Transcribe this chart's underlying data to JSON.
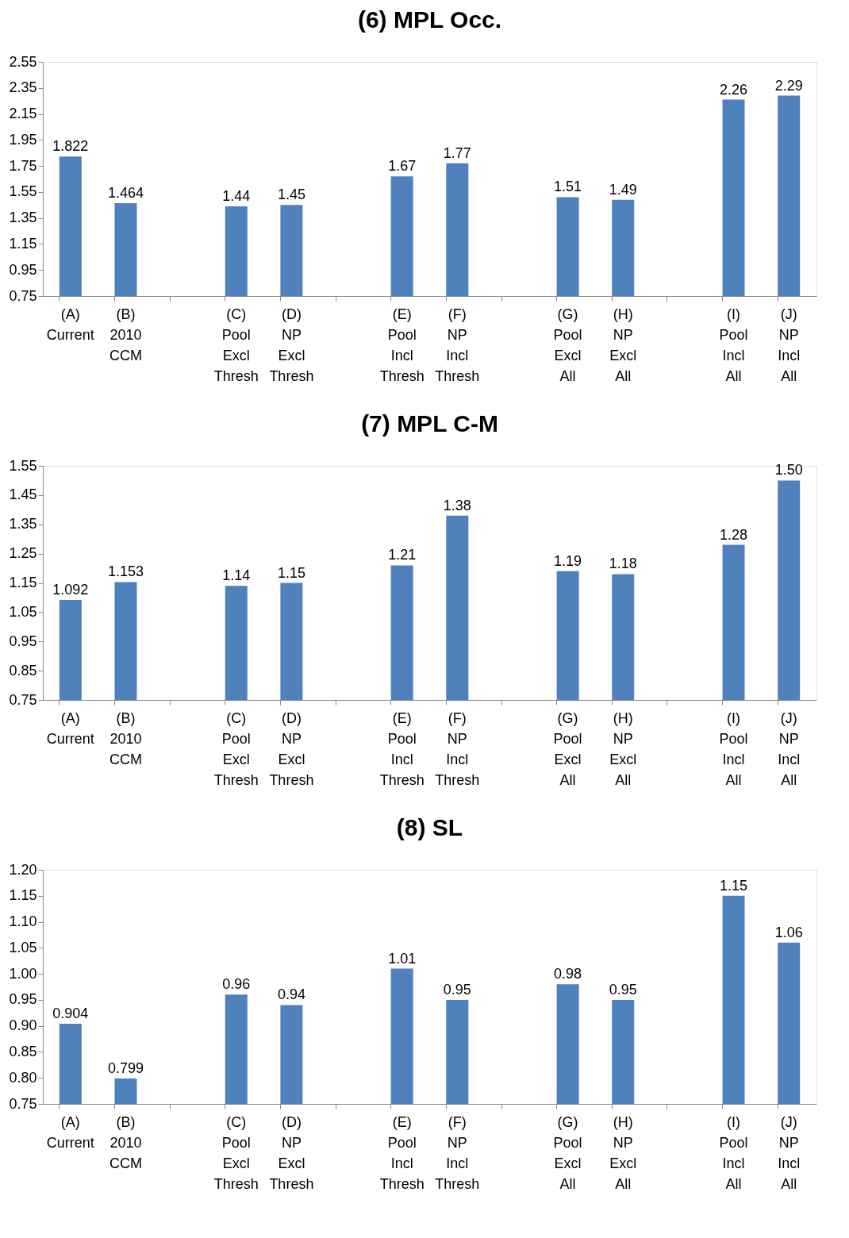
{
  "chart_data": [
    {
      "type": "bar",
      "title": "(6) MPL Occ.",
      "categories": [
        "(A) Current",
        "(B) 2010 CCM",
        null,
        "(C) Pool Excl Thresh",
        "(D) NP Excl Thresh",
        null,
        "(E) Pool Incl Thresh",
        "(F) NP Incl Thresh",
        null,
        "(G) Pool Excl All",
        "(H) NP Excl All",
        null,
        "(I) Pool Incl All",
        "(J) NP Incl All"
      ],
      "values": [
        1.822,
        1.464,
        null,
        1.44,
        1.45,
        null,
        1.67,
        1.77,
        null,
        1.51,
        1.49,
        null,
        2.26,
        2.29
      ],
      "value_labels": [
        "1.822",
        "1.464",
        null,
        "1.44",
        "1.45",
        null,
        "1.67",
        "1.77",
        null,
        "1.51",
        "1.49",
        null,
        "2.26",
        "2.29"
      ],
      "color": "#4f81bd",
      "ylim": [
        0.75,
        2.55
      ],
      "yticks": [
        0.75,
        0.95,
        1.15,
        1.35,
        1.55,
        1.75,
        1.95,
        2.15,
        2.35,
        2.55
      ],
      "grid": false
    },
    {
      "type": "bar",
      "title": "(7) MPL C-M",
      "categories": [
        "(A) Current",
        "(B) 2010 CCM",
        null,
        "(C) Pool Excl Thresh",
        "(D) NP Excl Thresh",
        null,
        "(E) Pool Incl Thresh",
        "(F) NP Incl Thresh",
        null,
        "(G) Pool Excl All",
        "(H) NP Excl All",
        null,
        "(I) Pool Incl All",
        "(J) NP Incl All"
      ],
      "values": [
        1.092,
        1.153,
        null,
        1.14,
        1.15,
        null,
        1.21,
        1.38,
        null,
        1.19,
        1.18,
        null,
        1.28,
        1.5
      ],
      "value_labels": [
        "1.092",
        "1.153",
        null,
        "1.14",
        "1.15",
        null,
        "1.21",
        "1.38",
        null,
        "1.19",
        "1.18",
        null,
        "1.28",
        "1.50"
      ],
      "color": "#4f81bd",
      "ylim": [
        0.75,
        1.55
      ],
      "yticks": [
        0.75,
        0.85,
        0.95,
        1.05,
        1.15,
        1.25,
        1.35,
        1.45,
        1.55
      ],
      "grid": false
    },
    {
      "type": "bar",
      "title": "(8) SL",
      "categories": [
        "(A) Current",
        "(B) 2010 CCM",
        null,
        "(C) Pool Excl Thresh",
        "(D) NP Excl Thresh",
        null,
        "(E) Pool Incl Thresh",
        "(F) NP Incl Thresh",
        null,
        "(G) Pool Excl All",
        "(H) NP Excl All",
        null,
        "(I) Pool Incl All",
        "(J) NP Incl All"
      ],
      "values": [
        0.904,
        0.799,
        null,
        0.96,
        0.94,
        null,
        1.01,
        0.95,
        null,
        0.98,
        0.95,
        null,
        1.15,
        1.06
      ],
      "value_labels": [
        "0.904",
        "0.799",
        null,
        "0.96",
        "0.94",
        null,
        "1.01",
        "0.95",
        null,
        "0.98",
        "0.95",
        null,
        "1.15",
        "1.06"
      ],
      "color": "#4f81bd",
      "ylim": [
        0.75,
        1.2
      ],
      "yticks": [
        0.75,
        {
          "value": 0.8,
          "label": "0.80"
        },
        0.85,
        {
          "value": 0.9,
          "label": "0.90"
        },
        0.95,
        {
          "value": 1.0,
          "label": "1.00"
        },
        1.05,
        {
          "value": 1.1,
          "label": "1.10"
        },
        1.15,
        {
          "value": 1.2,
          "label": "1.20"
        }
      ],
      "grid": false
    }
  ]
}
